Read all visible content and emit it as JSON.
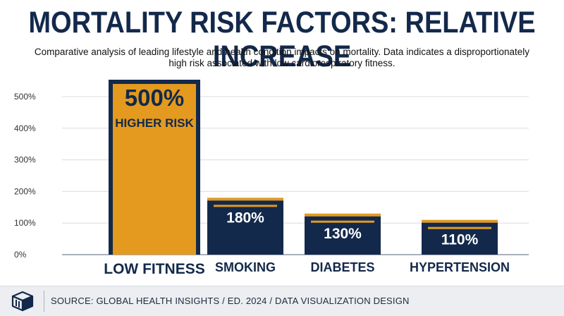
{
  "header": {
    "title": "MORTALITY RISK FACTORS: RELATIVE INCREASE",
    "subtitle_line1": "Comparative analysis of leading lifestyle and health condition impacts on mortality. Data indicates a disproportionately",
    "subtitle_line2": "high risk associated with low cardiorespiratory fitness."
  },
  "footer": {
    "source": "SOURCE: GLOBAL HEALTH INSIGHTS / ED. 2024 / DATA VISUALIZATION DESIGN",
    "logo_icon": "box-logo-icon"
  },
  "colors": {
    "navy": "#13294b",
    "gold": "#e39a1f",
    "grid": "#d9dce1",
    "axis_text": "#333333"
  },
  "chart_data": {
    "type": "bar",
    "title": "MORTALITY RISK FACTORS: RELATIVE INCREASE",
    "xlabel": "",
    "ylabel": "",
    "ylim": [
      0,
      550
    ],
    "yticks": [
      0,
      100,
      200,
      300,
      400,
      500
    ],
    "ytick_labels": [
      "0%",
      "100%",
      "200%",
      "300%",
      "400%",
      "500%"
    ],
    "grid": true,
    "categories": [
      "LOW FITNESS",
      "SMOKING",
      "DIABETES",
      "HYPERTENSION"
    ],
    "values": [
      500,
      180,
      130,
      110
    ],
    "value_labels": [
      "500%",
      "180%",
      "130%",
      "110%"
    ],
    "highlight_caption": "HIGHER RISK",
    "highlight_index": 0
  }
}
